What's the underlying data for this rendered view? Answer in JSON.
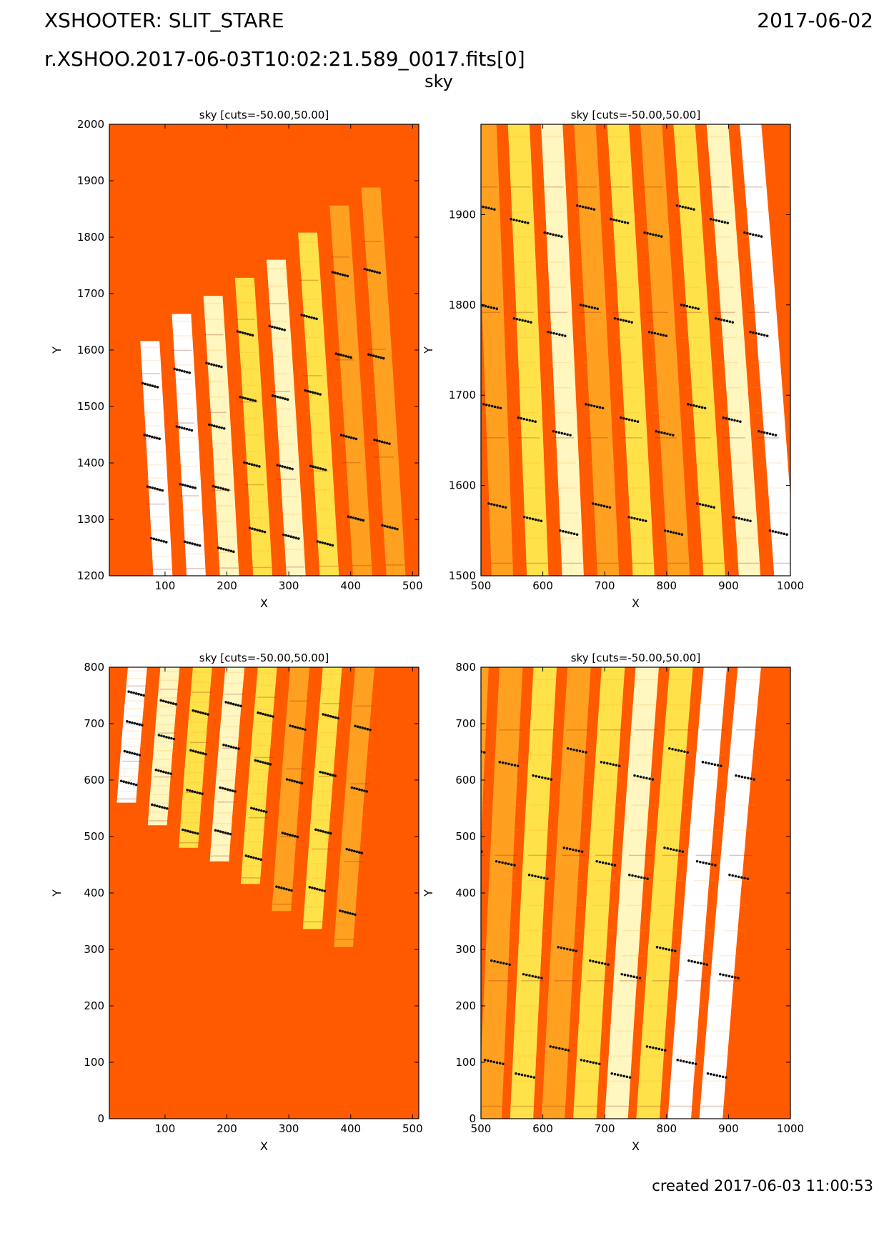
{
  "header": {
    "instrument_title": "XSHOOTER: SLIT_STARE",
    "date": "2017-06-02",
    "file": "r.XSHOO.2017-06-03T10:02:21.589_0017.fits[0]",
    "product": "sky"
  },
  "footer": {
    "created": "created 2017-06-03 11:00:53"
  },
  "colors": {
    "background": "#ff5a00",
    "stripe_white": "#ffffff",
    "stripe_yellow": "#ffe24a",
    "stripe_pale": "#fff6c0",
    "stripe_orange": "#ffa020",
    "stripe_dark": "#8a1200",
    "sky_line_dots": "#111111"
  },
  "chart_data": [
    {
      "type": "heatmap",
      "title": "sky [cuts=-50.00,50.00]",
      "xlabel": "X",
      "ylabel": "Y",
      "xlim": [
        10,
        510
      ],
      "ylim": [
        1200,
        2000
      ],
      "xticks": [
        100,
        200,
        300,
        400,
        500
      ],
      "yticks": [
        1200,
        1300,
        1400,
        1500,
        1600,
        1700,
        1800,
        1900,
        2000
      ],
      "cuts": [
        -50.0,
        50.0
      ]
    },
    {
      "type": "heatmap",
      "title": "sky [cuts=-50.00,50.00]",
      "xlabel": "X",
      "ylabel": "Y",
      "xlim": [
        500,
        1000
      ],
      "ylim": [
        1500,
        2000
      ],
      "xticks": [
        500,
        600,
        700,
        800,
        900,
        1000
      ],
      "yticks": [
        1500,
        1600,
        1700,
        1800,
        1900
      ],
      "cuts": [
        -50.0,
        50.0
      ]
    },
    {
      "type": "heatmap",
      "title": "sky [cuts=-50.00,50.00]",
      "xlabel": "X",
      "ylabel": "Y",
      "xlim": [
        10,
        510
      ],
      "ylim": [
        0,
        800
      ],
      "xticks": [
        100,
        200,
        300,
        400,
        500
      ],
      "yticks": [
        0,
        100,
        200,
        300,
        400,
        500,
        600,
        700,
        800
      ],
      "cuts": [
        -50.0,
        50.0
      ]
    },
    {
      "type": "heatmap",
      "title": "sky [cuts=-50.00,50.00]",
      "xlabel": "X",
      "ylabel": "Y",
      "xlim": [
        500,
        1000
      ],
      "ylim": [
        0,
        800
      ],
      "xticks": [
        500,
        600,
        700,
        800,
        900,
        1000
      ],
      "yticks": [
        0,
        100,
        200,
        300,
        400,
        500,
        600,
        700,
        800
      ],
      "cuts": [
        -50.0,
        50.0
      ]
    }
  ]
}
